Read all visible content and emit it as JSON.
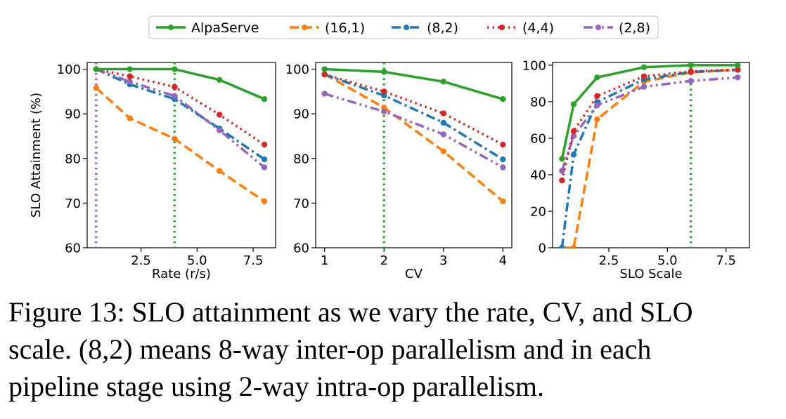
{
  "legend": {
    "entries": [
      {
        "name": "AlpaServe",
        "color": "#2ca02c",
        "dash": "solid"
      },
      {
        "name": "(16,1)",
        "color": "#ff7f0e",
        "dash": "dashed"
      },
      {
        "name": "(8,2)",
        "color": "#1f77b4",
        "dash": "dashdot"
      },
      {
        "name": "(4,4)",
        "color": "#d62728",
        "dash": "dotted"
      },
      {
        "name": "(2,8)",
        "color": "#9467bd",
        "dash": "dashdotdot"
      }
    ]
  },
  "chart_data": [
    {
      "type": "line",
      "xlabel": "Rate (r/s)",
      "ylabel": "SLO Attainment (%)",
      "xlim": [
        0.1,
        8.5
      ],
      "ylim": [
        60,
        101.5
      ],
      "xticks": [
        2.5,
        5.0,
        7.5
      ],
      "xtick_labels": [
        "2.5",
        "5.0",
        "7.5"
      ],
      "yticks": [
        60,
        70,
        80,
        90,
        100
      ],
      "ytick_labels": [
        "60",
        "70",
        "80",
        "90",
        "100"
      ],
      "vlines": [
        {
          "x": 4,
          "color": "#2ca02c",
          "dash": "dotted"
        },
        {
          "x": 0.5,
          "color": "#9467bd",
          "dash": "dotted"
        }
      ],
      "series": [
        {
          "name": "AlpaServe",
          "x": [
            0.5,
            2,
            4,
            6,
            8
          ],
          "values": [
            100,
            100,
            100,
            97.6,
            93.3
          ]
        },
        {
          "name": "(16,1)",
          "x": [
            0.5,
            2,
            4,
            6,
            8
          ],
          "values": [
            95.8,
            89.0,
            84.4,
            77.2,
            70.4
          ]
        },
        {
          "name": "(8,2)",
          "x": [
            0.5,
            2,
            4,
            6,
            8
          ],
          "values": [
            100,
            96.6,
            93.3,
            86.7,
            79.8
          ]
        },
        {
          "name": "(4,4)",
          "x": [
            0.5,
            2,
            4,
            6,
            8
          ],
          "values": [
            100,
            98.4,
            96.0,
            89.8,
            83.1
          ]
        },
        {
          "name": "(2,8)",
          "x": [
            0.5,
            2,
            4,
            6,
            8
          ],
          "values": [
            100,
            97.2,
            94.0,
            86.3,
            78.0
          ]
        }
      ]
    },
    {
      "type": "line",
      "xlabel": "CV",
      "ylabel": "",
      "xlim": [
        0.85,
        4.15
      ],
      "ylim": [
        60,
        101.5
      ],
      "xticks": [
        1,
        2,
        3,
        4
      ],
      "xtick_labels": [
        "1",
        "2",
        "3",
        "4"
      ],
      "yticks": [
        60,
        70,
        80,
        90,
        100
      ],
      "ytick_labels": [
        "60",
        "70",
        "80",
        "90",
        "100"
      ],
      "vlines": [
        {
          "x": 2,
          "color": "#2ca02c",
          "dash": "dotted"
        }
      ],
      "series": [
        {
          "name": "AlpaServe",
          "x": [
            1,
            2,
            3,
            4
          ],
          "values": [
            100,
            99.4,
            97.2,
            93.3
          ]
        },
        {
          "name": "(16,1)",
          "x": [
            1,
            2,
            3,
            4
          ],
          "values": [
            98.9,
            91.4,
            81.6,
            70.4
          ]
        },
        {
          "name": "(8,2)",
          "x": [
            1,
            2,
            3,
            4
          ],
          "values": [
            98.8,
            94.1,
            88.0,
            79.8
          ]
        },
        {
          "name": "(4,4)",
          "x": [
            1,
            2,
            3,
            4
          ],
          "values": [
            98.8,
            95.0,
            90.1,
            83.1
          ]
        },
        {
          "name": "(2,8)",
          "x": [
            1,
            2,
            3,
            4
          ],
          "values": [
            94.5,
            90.5,
            85.4,
            78.0
          ]
        }
      ]
    },
    {
      "type": "line",
      "xlabel": "SLO Scale",
      "ylabel": "",
      "xlim": [
        0.1,
        8.5
      ],
      "ylim": [
        0,
        101.5
      ],
      "xticks": [
        2.5,
        5.0,
        7.5
      ],
      "xtick_labels": [
        "2.5",
        "5.0",
        "7.5"
      ],
      "yticks": [
        0,
        20,
        40,
        60,
        80,
        100
      ],
      "ytick_labels": [
        "0",
        "20",
        "40",
        "60",
        "80",
        "100"
      ],
      "vlines": [
        {
          "x": 6,
          "color": "#2ca02c",
          "dash": "dotted"
        }
      ],
      "series": [
        {
          "name": "AlpaServe",
          "x": [
            0.5,
            1,
            2,
            4,
            6,
            8
          ],
          "values": [
            48.7,
            78.6,
            93.3,
            98.9,
            100,
            100
          ]
        },
        {
          "name": "(16,1)",
          "x": [
            0.5,
            1,
            2,
            4,
            6,
            8
          ],
          "values": [
            0,
            0,
            70.4,
            91.0,
            96.0,
            97.6
          ]
        },
        {
          "name": "(8,2)",
          "x": [
            0.5,
            1,
            2,
            4,
            6,
            8
          ],
          "values": [
            0,
            51.0,
            79.8,
            92.2,
            96.3,
            97.4
          ]
        },
        {
          "name": "(4,4)",
          "x": [
            0.5,
            1,
            2,
            4,
            6,
            8
          ],
          "values": [
            36.9,
            63.9,
            83.1,
            93.9,
            96.6,
            97.6
          ]
        },
        {
          "name": "(2,8)",
          "x": [
            0.5,
            1,
            2,
            4,
            6,
            8
          ],
          "values": [
            42.1,
            61.2,
            78.0,
            88.2,
            91.4,
            93.3
          ]
        }
      ]
    }
  ],
  "caption": {
    "line1": "Figure 13: SLO attainment as we vary the rate, CV, and SLO",
    "line2": "scale. (8,2) means 8-way inter-op parallelism and in each",
    "line3": "pipeline stage using 2-way intra-op parallelism."
  }
}
